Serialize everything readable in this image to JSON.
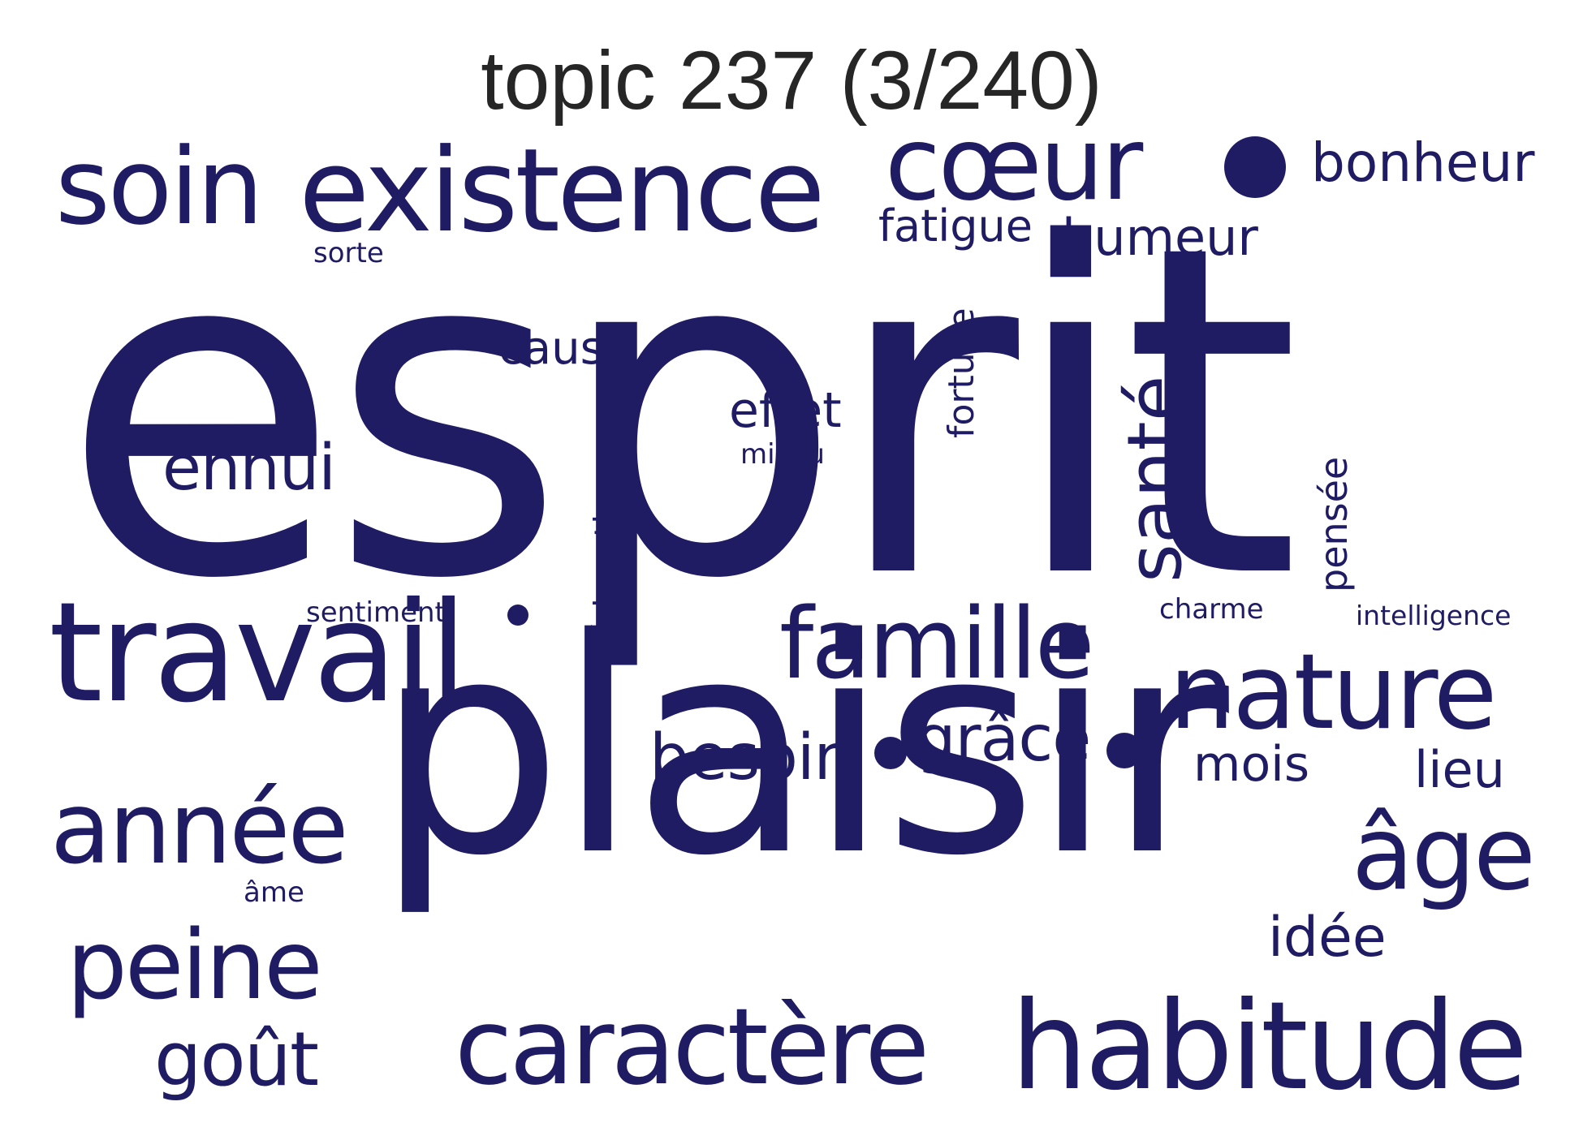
{
  "title": "topic 237 (3/240)",
  "word_color": "#201c64",
  "title_color": "#262626",
  "words": [
    {
      "text": "esprit",
      "weight": 100
    },
    {
      "text": "plaisir",
      "weight": 68
    },
    {
      "text": "travail",
      "weight": 34
    },
    {
      "text": "existence",
      "weight": 28
    },
    {
      "text": "habitude",
      "weight": 28
    },
    {
      "text": "caractère",
      "weight": 26
    },
    {
      "text": "soin",
      "weight": 25
    },
    {
      "text": "cœur",
      "weight": 25
    },
    {
      "text": "nature",
      "weight": 25
    },
    {
      "text": "année",
      "weight": 24
    },
    {
      "text": "famille",
      "weight": 22
    },
    {
      "text": "âge",
      "weight": 22
    },
    {
      "text": "peine",
      "weight": 22
    },
    {
      "text": "santé",
      "weight": 17
    },
    {
      "text": "goût",
      "weight": 17
    },
    {
      "text": "besoin",
      "weight": 14
    },
    {
      "text": "grâce",
      "weight": 13
    },
    {
      "text": "ennui",
      "weight": 13
    },
    {
      "text": "bonheur",
      "weight": 12
    },
    {
      "text": "idée",
      "weight": 12
    },
    {
      "text": "humeur",
      "weight": 12
    },
    {
      "text": "mois",
      "weight": 12
    },
    {
      "text": "lieu",
      "weight": 11
    },
    {
      "text": "effet",
      "weight": 11
    },
    {
      "text": "fatigue",
      "weight": 11
    },
    {
      "text": "cause",
      "weight": 10
    },
    {
      "text": "pensée",
      "weight": 10
    },
    {
      "text": "fortune",
      "weight": 9
    },
    {
      "text": "éducation",
      "weight": 9
    },
    {
      "text": "sentiment",
      "weight": 7
    },
    {
      "text": "charme",
      "weight": 7
    },
    {
      "text": "intelligence",
      "weight": 7
    },
    {
      "text": "milieu",
      "weight": 7
    },
    {
      "text": "âme",
      "weight": 7
    },
    {
      "text": "sorte",
      "weight": 7
    }
  ]
}
